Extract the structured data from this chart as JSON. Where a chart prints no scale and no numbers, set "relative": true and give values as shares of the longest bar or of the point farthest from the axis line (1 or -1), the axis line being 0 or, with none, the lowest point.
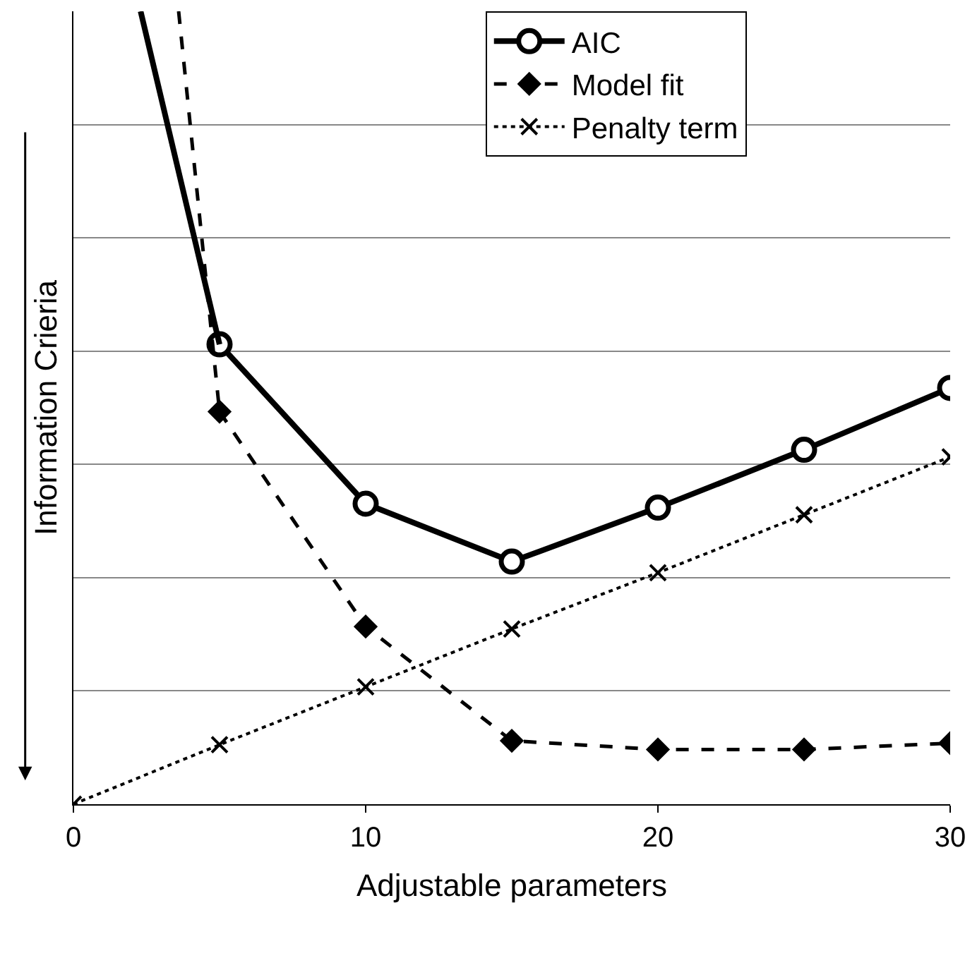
{
  "chart_data": {
    "type": "line",
    "relative": true,
    "xlabel": "Adjustable parameters",
    "ylabel": "Information Crieria",
    "xlim": [
      0,
      30
    ],
    "xticks": [
      0,
      10,
      20,
      30
    ],
    "grid": "y",
    "legend": "top right",
    "series": [
      {
        "name": "AIC",
        "color": "#000000",
        "x": [
          5,
          10,
          15,
          20,
          25,
          30
        ],
        "values": [
          0.58,
          0.379,
          0.306,
          0.374,
          0.447,
          0.525
        ],
        "marker": "circle",
        "line_style": "solid"
      },
      {
        "name": "Model fit",
        "color": "#000000",
        "x": [
          5,
          10,
          15,
          20,
          25,
          30
        ],
        "values": [
          0.495,
          0.224,
          0.08,
          0.069,
          0.069,
          0.077
        ],
        "marker": "diamond",
        "line_style": "dashed"
      },
      {
        "name": "Penalty term",
        "color": "#000000",
        "x": [
          0,
          5,
          10,
          15,
          20,
          25,
          30
        ],
        "values": [
          0,
          0.075,
          0.148,
          0.221,
          0.292,
          0.365,
          0.438
        ],
        "marker": "cross",
        "line_style": "dotted"
      },
      {
        "color": "#000000",
        "x": [
          2.3,
          5
        ],
        "values": [
          1,
          0.58
        ],
        "marker": "none",
        "line_style": "solid"
      },
      {
        "color": "#000000",
        "x": [
          3.6,
          5
        ],
        "values": [
          1,
          0.495
        ],
        "marker": "none",
        "line_style": "dashed"
      }
    ]
  }
}
